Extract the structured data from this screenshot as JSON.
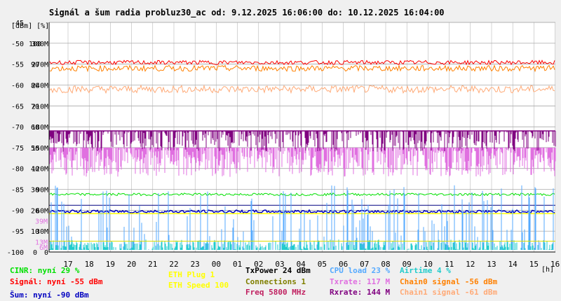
{
  "chart_data": {
    "type": "line",
    "title": "Signál a šum radia probluz30_ac od: 9.12.2025 16:06:00 do: 10.12.2025 16:04:00",
    "units_label": "[dBm] [%]",
    "x_unit_label": "[h]",
    "y_scale_dbm": [
      -45,
      -50,
      -55,
      -60,
      -65,
      -70,
      -75,
      -80,
      -85,
      -90,
      -95,
      -100
    ],
    "y_scale_percent": [
      "",
      "100",
      "90",
      "80",
      "70",
      "60",
      "50",
      "40",
      "30",
      "20",
      "10",
      "0"
    ],
    "y_scale_rate": [
      "",
      "300M",
      "270M",
      "240M",
      "210M",
      "180M",
      "150M",
      "120M",
      "90M",
      "60M",
      "30M",
      "0"
    ],
    "rate_markers": [
      "39M",
      "13M",
      "6M"
    ],
    "x_ticks": [
      "17",
      "18",
      "19",
      "20",
      "21",
      "22",
      "23",
      "00",
      "01",
      "02",
      "03",
      "04",
      "05",
      "06",
      "07",
      "08",
      "09",
      "10",
      "11",
      "12",
      "13",
      "14",
      "15",
      "16"
    ],
    "ylim_dbm": [
      -100,
      -45
    ],
    "grid": true,
    "series": [
      {
        "name": "Signál",
        "color": "#ff0000",
        "level_dbm": -55
      },
      {
        "name": "Chain0 signal",
        "color": "#ff8000",
        "level_dbm": -56
      },
      {
        "name": "Chain1 signal",
        "color": "#ffaa77",
        "level_dbm": -61
      },
      {
        "name": "Šum",
        "color": "#0000c0",
        "level_dbm": -90
      },
      {
        "name": "Rxrate",
        "color": "#800080",
        "level_rate_m": 144
      },
      {
        "name": "Txrate",
        "color": "#e070e0",
        "level_rate_m": 117
      },
      {
        "name": "CINR",
        "color": "#00e000",
        "level_percent": 29
      },
      {
        "name": "CPU load",
        "color": "#55aaff",
        "level_percent": 23
      },
      {
        "name": "Airtime",
        "color": "#22cccc",
        "level_percent": 4
      },
      {
        "name": "ETH Plug",
        "color": "#ffff00",
        "level": 1
      }
    ]
  },
  "legend": {
    "cinr": "CINR: nyní 29 %",
    "signal": "Signál: nyní -55 dBm",
    "noise": "Šum: nyní -90 dBm",
    "eth_plug": "ETH Plug 1",
    "eth_speed": "ETH Speed 100",
    "txpower": "TxPower 24 dBm",
    "connections": "Connections 1",
    "freq": "Freq 5800 MHz",
    "cpu": "CPU load 23 %",
    "txrate": "Txrate: 117 M",
    "rxrate": "Rxrate: 144 M",
    "airtime": "Airtime 4 %",
    "chain0": "Chain0 signal -56 dBm",
    "chain1": "Chain1 signal -61 dBm"
  },
  "colors": {
    "cinr": "#00e000",
    "signal": "#ff0000",
    "noise": "#0000c0",
    "eth": "#ffff00",
    "txpower": "#000000",
    "connections": "#808000",
    "freq": "#c02060",
    "cpu": "#55aaff",
    "txrate": "#e070e0",
    "rxrate": "#800080",
    "airtime": "#22cccc",
    "chain0": "#ff8000",
    "chain1": "#ffaa77"
  }
}
